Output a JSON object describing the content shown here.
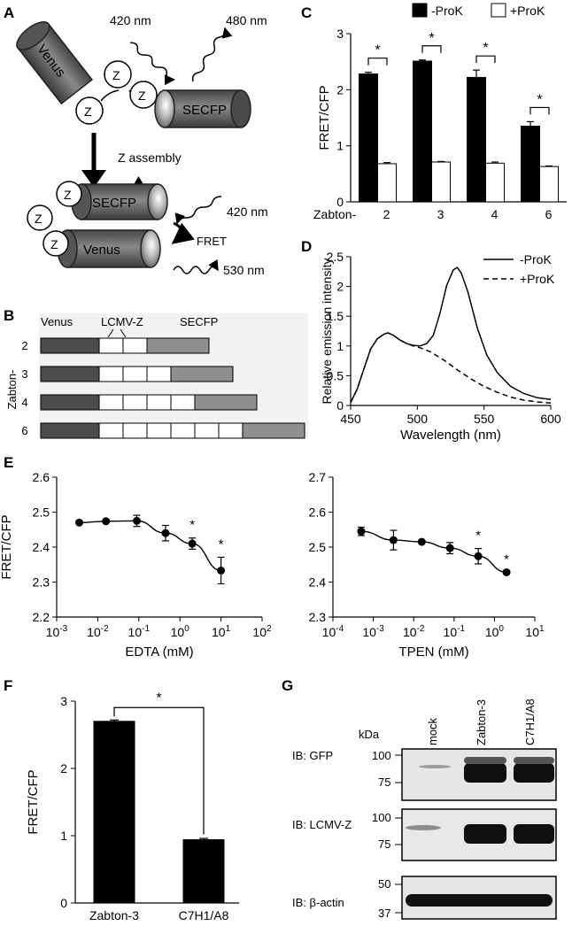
{
  "panel_labels": {
    "A": "A",
    "B": "B",
    "C": "C",
    "D": "D",
    "E": "E",
    "F": "F",
    "G": "G"
  },
  "panel_a": {
    "venus": "Venus",
    "secfp": "SECFP",
    "z": "Z",
    "excitation": "420 nm",
    "emission_cfp": "480 nm",
    "emission_fret": "530 nm",
    "assembly": "Z assembly",
    "fret": "FRET"
  },
  "panel_b": {
    "venus": "Venus",
    "lcmv_z": "LCMV-Z",
    "secfp": "SECFP",
    "axis_label": "Zabton-",
    "constructs": [
      {
        "label": "2",
        "z_count": 2
      },
      {
        "label": "3",
        "z_count": 3
      },
      {
        "label": "4",
        "z_count": 4
      },
      {
        "label": "6",
        "z_count": 6
      }
    ]
  },
  "panel_g": {
    "kda": "kDa",
    "lanes": [
      "mock",
      "Zabton-3",
      "C7H1/A8"
    ],
    "blots": [
      {
        "label": "IB: GFP",
        "markers": [
          "100",
          "75"
        ]
      },
      {
        "label": "IB: LCMV-Z",
        "markers": [
          "100",
          "75"
        ]
      },
      {
        "label": "IB: β-actin",
        "markers": [
          "50",
          "37"
        ]
      }
    ]
  },
  "chart_data": [
    {
      "id": "C",
      "type": "bar",
      "categories": [
        "2",
        "3",
        "4",
        "6"
      ],
      "category_prefix": "Zabton-",
      "ylabel": "FRET/CFP",
      "ylim": [
        0,
        3
      ],
      "yticks": [
        "0",
        "1",
        "2",
        "3"
      ],
      "series": [
        {
          "name": "-ProK",
          "color": "#000000",
          "values": [
            2.28,
            2.51,
            2.22,
            1.35
          ],
          "errors": [
            0.03,
            0.02,
            0.13,
            0.08
          ]
        },
        {
          "name": "+ProK",
          "color": "#ffffff",
          "values": [
            0.68,
            0.71,
            0.69,
            0.63
          ],
          "errors": [
            0.02,
            0.01,
            0.02,
            0.01
          ]
        }
      ],
      "significance": [
        "*",
        "*",
        "*",
        "*"
      ]
    },
    {
      "id": "D",
      "type": "line",
      "xlabel": "Wavelength (nm)",
      "ylabel": "Relative emission intensity",
      "xlim": [
        450,
        600
      ],
      "ylim": [
        0,
        2.5
      ],
      "xticks": [
        "450",
        "500",
        "550",
        "600"
      ],
      "yticks": [
        "0",
        "0.5",
        "1",
        "1.5",
        "2",
        "2.5"
      ],
      "series": [
        {
          "name": "-ProK",
          "style": "solid",
          "x": [
            450,
            455,
            460,
            465,
            470,
            475,
            478,
            482,
            487,
            492,
            497,
            502,
            507,
            512,
            517,
            522,
            527,
            530,
            533,
            538,
            545,
            552,
            560,
            570,
            580,
            590,
            600
          ],
          "y": [
            0.05,
            0.28,
            0.62,
            0.95,
            1.12,
            1.2,
            1.22,
            1.18,
            1.1,
            1.04,
            1.01,
            1.0,
            1.04,
            1.18,
            1.55,
            2.02,
            2.28,
            2.32,
            2.22,
            1.9,
            1.3,
            0.85,
            0.55,
            0.32,
            0.2,
            0.13,
            0.1
          ]
        },
        {
          "name": "+ProK",
          "style": "dashed",
          "x": [
            450,
            455,
            460,
            465,
            470,
            475,
            478,
            482,
            487,
            492,
            497,
            502,
            510,
            520,
            530,
            540,
            550,
            560,
            570,
            580,
            590,
            600
          ],
          "y": [
            0.05,
            0.28,
            0.62,
            0.95,
            1.12,
            1.2,
            1.22,
            1.18,
            1.1,
            1.04,
            1.0,
            0.97,
            0.9,
            0.76,
            0.6,
            0.45,
            0.32,
            0.22,
            0.14,
            0.09,
            0.06,
            0.04
          ]
        }
      ]
    },
    {
      "id": "E1",
      "type": "scatter",
      "xlabel": "EDTA (mM)",
      "ylabel": "FRET/CFP",
      "xscale": "log",
      "xlim_exp": [
        -3,
        2
      ],
      "ylim": [
        2.2,
        2.6
      ],
      "xticks": [
        {
          "base": "10",
          "exp": "-3"
        },
        {
          "base": "10",
          "exp": "-2"
        },
        {
          "base": "10",
          "exp": "-1"
        },
        {
          "base": "10",
          "exp": "0"
        },
        {
          "base": "10",
          "exp": "1"
        },
        {
          "base": "10",
          "exp": "2"
        }
      ],
      "yticks": [
        "2.2",
        "2.3",
        "2.4",
        "2.5",
        "2.6"
      ],
      "points": {
        "log_x": [
          -2.45,
          -1.8,
          -1.05,
          -0.35,
          0.3,
          1.0
        ],
        "y": [
          2.47,
          2.474,
          2.475,
          2.44,
          2.41,
          2.333
        ],
        "err": [
          0.0,
          0.004,
          0.016,
          0.022,
          0.016,
          0.038
        ]
      },
      "significance": [
        {
          "point": 4,
          "mark": "*"
        },
        {
          "point": 5,
          "mark": "*"
        }
      ]
    },
    {
      "id": "E2",
      "type": "scatter",
      "xlabel": "TPEN (mM)",
      "ylabel": "",
      "xscale": "log",
      "xlim_exp": [
        -4,
        1
      ],
      "ylim": [
        2.3,
        2.7
      ],
      "xticks": [
        {
          "base": "10",
          "exp": "-4"
        },
        {
          "base": "10",
          "exp": "-3"
        },
        {
          "base": "10",
          "exp": "-2"
        },
        {
          "base": "10",
          "exp": "-1"
        },
        {
          "base": "10",
          "exp": "0"
        },
        {
          "base": "10",
          "exp": "1"
        }
      ],
      "yticks": [
        "2.3",
        "2.4",
        "2.5",
        "2.6",
        "2.7"
      ],
      "points": {
        "log_x": [
          -3.3,
          -2.5,
          -1.8,
          -1.1,
          -0.4,
          0.3
        ],
        "y": [
          2.545,
          2.52,
          2.515,
          2.497,
          2.474,
          2.428
        ],
        "err": [
          0.012,
          0.028,
          0.004,
          0.016,
          0.022,
          0.0
        ]
      },
      "significance": [
        {
          "point": 4,
          "mark": "*"
        },
        {
          "point": 5,
          "mark": "*"
        }
      ]
    },
    {
      "id": "F",
      "type": "bar",
      "categories": [
        "Zabton-3",
        "C7H1/A8"
      ],
      "ylabel": "FRET/CFP",
      "ylim": [
        0,
        3
      ],
      "yticks": [
        "0",
        "1",
        "2",
        "3"
      ],
      "series": [
        {
          "name": "FRET/CFP",
          "color": "#000000",
          "values": [
            2.7,
            0.94
          ],
          "errors": [
            0.02,
            0.02
          ]
        }
      ],
      "significance": "*"
    }
  ]
}
